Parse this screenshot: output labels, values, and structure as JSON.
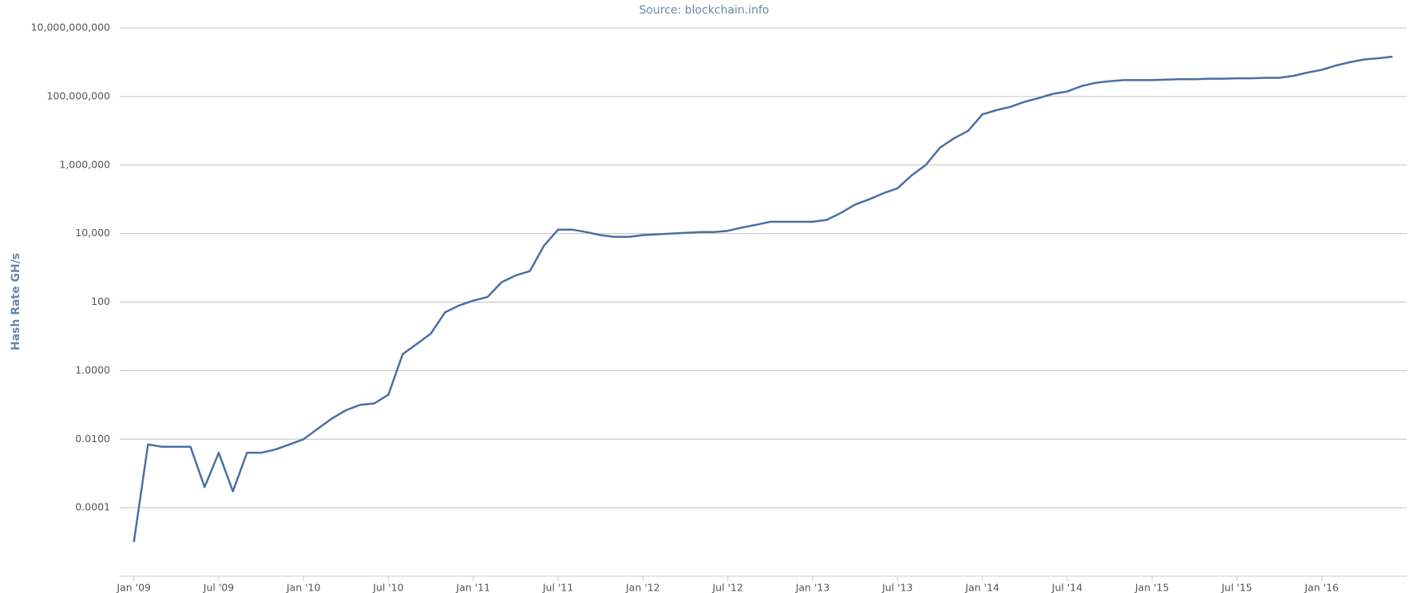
{
  "chart_data": {
    "type": "line",
    "title": "Source: blockchain.info",
    "y_label": "Hash Rate GH/s",
    "log_y": true,
    "grid": true,
    "color": "#4a6fa5",
    "x": [
      "2009-01",
      "2009-02",
      "2009-03",
      "2009-04",
      "2009-05",
      "2009-06",
      "2009-07",
      "2009-08",
      "2009-09",
      "2009-10",
      "2009-11",
      "2009-12",
      "2010-01",
      "2010-02",
      "2010-03",
      "2010-04",
      "2010-05",
      "2010-06",
      "2010-07",
      "2010-08",
      "2010-09",
      "2010-10",
      "2010-11",
      "2010-12",
      "2011-01",
      "2011-02",
      "2011-03",
      "2011-04",
      "2011-05",
      "2011-06",
      "2011-07",
      "2011-08",
      "2011-09",
      "2011-10",
      "2011-11",
      "2011-12",
      "2012-01",
      "2012-02",
      "2012-03",
      "2012-04",
      "2012-05",
      "2012-06",
      "2012-07",
      "2012-08",
      "2012-09",
      "2012-10",
      "2012-11",
      "2012-12",
      "2013-01",
      "2013-02",
      "2013-03",
      "2013-04",
      "2013-05",
      "2013-06",
      "2013-07",
      "2013-08",
      "2013-09",
      "2013-10",
      "2013-11",
      "2013-12",
      "2014-01",
      "2014-02",
      "2014-03",
      "2014-04",
      "2014-05",
      "2014-06",
      "2014-07",
      "2014-08",
      "2014-09",
      "2014-10",
      "2014-11",
      "2014-12",
      "2015-01",
      "2015-02",
      "2015-03",
      "2015-04",
      "2015-05",
      "2015-06",
      "2015-07",
      "2015-08",
      "2015-09",
      "2015-10",
      "2015-11",
      "2015-12",
      "2016-01",
      "2016-02",
      "2016-03",
      "2016-04",
      "2016-05",
      "2016-06"
    ],
    "values": [
      1e-05,
      0.007,
      0.006,
      0.006,
      0.006,
      0.0004,
      0.004,
      0.0003,
      0.004,
      0.004,
      0.005,
      0.007,
      0.01,
      0.02,
      0.04,
      0.07,
      0.1,
      0.11,
      0.2,
      3,
      6,
      12,
      50,
      80,
      110,
      140,
      380,
      600,
      800,
      4400,
      13000,
      13000,
      11000,
      9000,
      8000,
      8000,
      9000,
      9500,
      10000,
      10500,
      11000,
      11000,
      12000,
      15000,
      18000,
      22000,
      22000,
      22000,
      22000,
      25000,
      40000,
      70000,
      100000,
      150000,
      210000,
      500000,
      1000000,
      3200000,
      6000000,
      10000000,
      30000000,
      40000000,
      50000000,
      70000000,
      90000000,
      120000000,
      140000000,
      200000000,
      250000000,
      280000000,
      300000000,
      300000000,
      300000000,
      310000000,
      320000000,
      320000000,
      330000000,
      330000000,
      340000000,
      340000000,
      350000000,
      350000000,
      400000000,
      500000000,
      600000000,
      800000000,
      1000000000,
      1200000000,
      1300000000,
      1450000000
    ],
    "xlim": [
      "2008-12",
      "2016-07"
    ],
    "xticks": [
      {
        "value": "2009-01",
        "label": "Jan '09"
      },
      {
        "value": "2009-07",
        "label": "Jul '09"
      },
      {
        "value": "2010-01",
        "label": "Jan '10"
      },
      {
        "value": "2010-07",
        "label": "Jul '10"
      },
      {
        "value": "2011-01",
        "label": "Jan '11"
      },
      {
        "value": "2011-07",
        "label": "Jul '11"
      },
      {
        "value": "2012-01",
        "label": "Jan '12"
      },
      {
        "value": "2012-07",
        "label": "Jul '12"
      },
      {
        "value": "2013-01",
        "label": "Jan '13"
      },
      {
        "value": "2013-07",
        "label": "Jul '13"
      },
      {
        "value": "2014-01",
        "label": "Jan '14"
      },
      {
        "value": "2014-07",
        "label": "Jul '14"
      },
      {
        "value": "2015-01",
        "label": "Jan '15"
      },
      {
        "value": "2015-07",
        "label": "Jul '15"
      },
      {
        "value": "2016-01",
        "label": "Jan '16"
      }
    ],
    "ylim": [
      1e-06,
      10000000000
    ],
    "yticks": [
      {
        "value": 0.0001,
        "label": "0.0001"
      },
      {
        "value": 0.01,
        "label": "0.0100"
      },
      {
        "value": 1,
        "label": "1.0000"
      },
      100,
      {
        "value": 10000,
        "label": "10,000"
      },
      {
        "value": 1000000,
        "label": "1,000,000"
      },
      {
        "value": 100000000,
        "label": "100,000,000"
      },
      {
        "value": 10000000000,
        "label": "10,000,000,000"
      }
    ]
  }
}
